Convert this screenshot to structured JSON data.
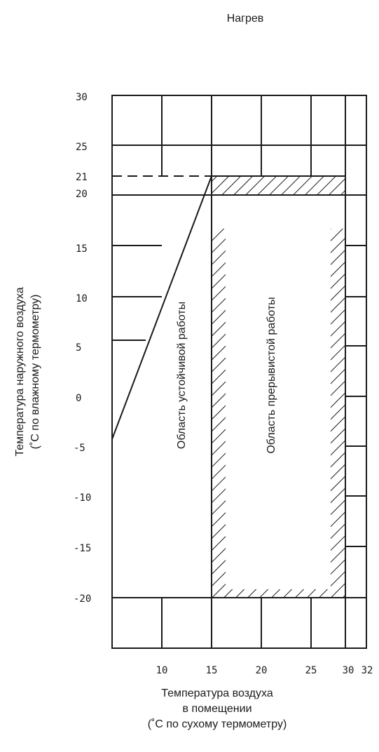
{
  "chart_data": {
    "type": "diagram",
    "title": "Нагрев",
    "ylabel_line1": "Температура наружного воздуха",
    "ylabel_line2": "(˚C по влажному термометру)",
    "xlabel_line1": "Температура воздуха",
    "xlabel_line2": "в помещении",
    "xlabel_line3": "(˚C по сухому термометру)",
    "x_ticks": [
      "10",
      "15",
      "20",
      "25",
      "30",
      "32"
    ],
    "y_ticks": [
      "30",
      "25",
      "21",
      "20",
      "15",
      "10",
      "5",
      "0",
      "-5",
      "-10",
      "-15",
      "-20"
    ],
    "regions": [
      {
        "name": "Область устойчивой работы",
        "polygon": [
          [
            5,
            -5
          ],
          [
            15,
            21
          ],
          [
            15,
            -20
          ],
          [
            5,
            -20
          ]
        ]
      },
      {
        "name": "Область прерывистой работы",
        "rect": {
          "x0": 15,
          "x1": 30,
          "y0": -20,
          "y1": 21
        }
      }
    ]
  }
}
